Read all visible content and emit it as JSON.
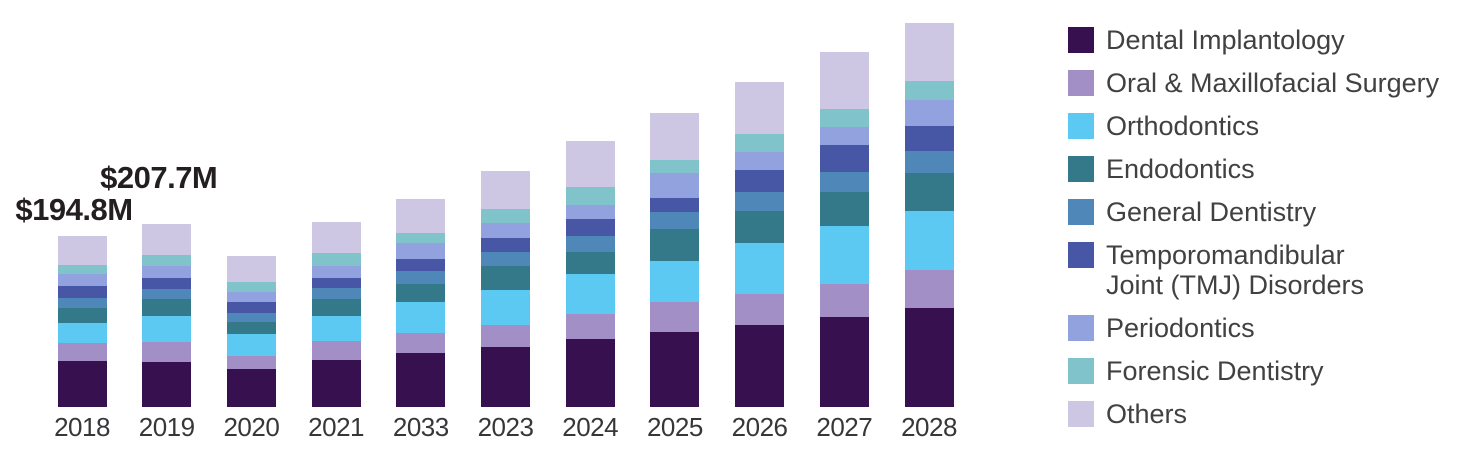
{
  "chart_data": {
    "type": "bar",
    "stacked": true,
    "title": "",
    "xlabel": "",
    "ylabel": "",
    "value_format": "$M (USD millions)",
    "grid": false,
    "legend_position": "right",
    "ylim": [
      0,
      450
    ],
    "categories": [
      "2018",
      "2019",
      "2020",
      "2021",
      "2033",
      "2023",
      "2024",
      "2025",
      "2026",
      "2027",
      "2028"
    ],
    "series": [
      {
        "name": "Dental Implantology",
        "color": "#36104f",
        "values": [
          51.9,
          51.7,
          43.0,
          53.6,
          61.2,
          68.1,
          77.2,
          85.2,
          93.5,
          102.3,
          112.5
        ]
      },
      {
        "name": "Oral & Maxillofacial Surgery",
        "color": "#a18fc5",
        "values": [
          21.0,
          21.7,
          15.2,
          20.9,
          22.8,
          25.4,
          28.8,
          33.7,
          35.0,
          38.0,
          42.9
        ]
      },
      {
        "name": "Orthodontics",
        "color": "#5bc9f1",
        "values": [
          22.8,
          29.6,
          25.1,
          29.3,
          35.3,
          39.9,
          45.6,
          47.5,
          58.1,
          65.3,
          67.3
        ]
      },
      {
        "name": "Endodontics",
        "color": "#33798a",
        "values": [
          16.3,
          19.8,
          12.9,
          19.0,
          20.5,
          26.6,
          24.3,
          36.1,
          36.0,
          39.2,
          43.8
        ]
      },
      {
        "name": "General Dentistry",
        "color": "#4f87b8",
        "values": [
          11.4,
          11.7,
          10.7,
          12.5,
          14.4,
          16.0,
          19.0,
          19.4,
          21.7,
          22.8,
          24.6
        ]
      },
      {
        "name": "Temporomandibular Joint (TMJ) Disorders",
        "color": "#4757a5",
        "values": [
          14.0,
          12.2,
          12.1,
          11.4,
          14.1,
          16.4,
          19.0,
          16.0,
          25.4,
          30.3,
          27.8
        ]
      },
      {
        "name": "Periodontics",
        "color": "#92a2de",
        "values": [
          14.1,
          13.2,
          11.4,
          14.0,
          18.2,
          16.3,
          16.3,
          27.7,
          20.2,
          20.2,
          30.3
        ]
      },
      {
        "name": "Forensic Dentistry",
        "color": "#80c3ca",
        "values": [
          9.8,
          12.5,
          11.4,
          14.0,
          11.4,
          16.0,
          20.2,
          15.2,
          20.2,
          20.2,
          21.7
        ]
      },
      {
        "name": "Others",
        "color": "#cec7e3",
        "values": [
          33.5,
          35.3,
          29.6,
          35.3,
          38.0,
          43.7,
          52.0,
          52.9,
          59.6,
          64.6,
          65.8
        ]
      }
    ],
    "annotations": [
      {
        "category": "2018",
        "text": "$194.8M"
      },
      {
        "category": "2019",
        "text": "$207.7M"
      }
    ]
  },
  "legend": {
    "items": [
      {
        "label": "Dental Implantology",
        "color": "#36104f"
      },
      {
        "label": "Oral & Maxillofacial Surgery",
        "color": "#a18fc5"
      },
      {
        "label": "Orthodontics",
        "color": "#5bc9f1"
      },
      {
        "label": "Endodontics",
        "color": "#33798a"
      },
      {
        "label": "General Dentistry",
        "color": "#4f87b8"
      },
      {
        "label": "Temporomandibular\nJoint (TMJ) Disorders",
        "color": "#4757a5"
      },
      {
        "label": "Periodontics",
        "color": "#92a2de"
      },
      {
        "label": "Forensic Dentistry",
        "color": "#80c3ca"
      },
      {
        "label": "Others",
        "color": "#cec7e3"
      }
    ]
  }
}
